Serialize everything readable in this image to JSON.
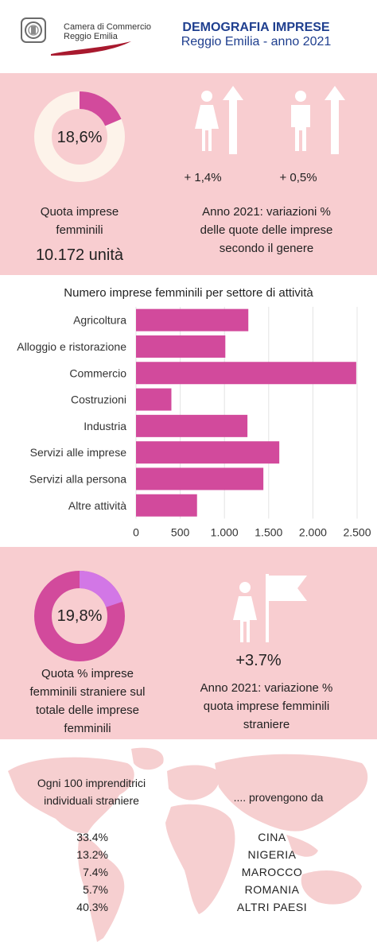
{
  "header": {
    "org_line1": "Camera di Commercio",
    "org_line2": "Reggio Emilia",
    "title": "DEMOGRAFIA IMPRESE",
    "subtitle": "Reggio Emilia - anno 2021"
  },
  "section1": {
    "donut_value": 18.6,
    "donut_label": "18,6%",
    "caption_line1": "Quota imprese",
    "caption_line2": "femminili",
    "count": "10.172 unità",
    "female_change": "+   1,4%",
    "male_change": "+ 0,5%",
    "var_caption_line1": "Anno 2021: variazioni %",
    "var_caption_line2": "delle quote delle imprese",
    "var_caption_line3": "secondo il genere",
    "icons": [
      "woman-icon",
      "arrow-up-icon",
      "man-icon",
      "arrow-up-icon"
    ],
    "colors": {
      "accent": "#d24a9c",
      "ring": "#fdf3ea"
    }
  },
  "chart_data": {
    "type": "bar",
    "orientation": "horizontal",
    "title": "Numero imprese femminili per settore di attività",
    "categories": [
      "Agricoltura",
      "Alloggio e ristorazione",
      "Commercio",
      "Costruzioni",
      "Industria",
      "Servizi alle imprese",
      "Servizi alla persona",
      "Altre attività"
    ],
    "values": [
      1270,
      1010,
      2490,
      400,
      1260,
      1620,
      1440,
      690
    ],
    "xlim": [
      0,
      2500
    ],
    "ticks": [
      0,
      500,
      1000,
      1500,
      2000,
      2500
    ],
    "tick_labels": [
      "0",
      "500",
      "1.000",
      "1.500",
      "2.000",
      "2.500"
    ],
    "grid": true,
    "bar_color": "#d24a9c"
  },
  "section3": {
    "donut_value": 19.8,
    "donut_label": "19,8%",
    "caption_line1": "Quota  % imprese",
    "caption_line2": "femminili straniere sul",
    "caption_line3": "totale delle imprese",
    "caption_line4": "femminili",
    "change": "+3.7%",
    "var_caption_line1": "Anno 2021: variazione %",
    "var_caption_line2": "quota imprese femminili",
    "var_caption_line3": "straniere",
    "icons": [
      "woman-icon",
      "flag-icon"
    ],
    "colors": {
      "accent": "#d24a9c",
      "highlight": "#d277e6"
    }
  },
  "section4": {
    "left_line1": "Ogni 100 imprenditrici",
    "left_line2": "individuali straniere",
    "right_line1": ".... provengono da",
    "origins": [
      {
        "pct": "33.4%",
        "country": "CINA"
      },
      {
        "pct": "13.2%",
        "country": "NIGERIA"
      },
      {
        "pct": "7.4%",
        "country": "MAROCCO"
      },
      {
        "pct": "5.7%",
        "country": "ROMANIA"
      },
      {
        "pct": "40.3%",
        "country": "ALTRI PAESI"
      }
    ],
    "map_color": "#f6cfd0"
  }
}
